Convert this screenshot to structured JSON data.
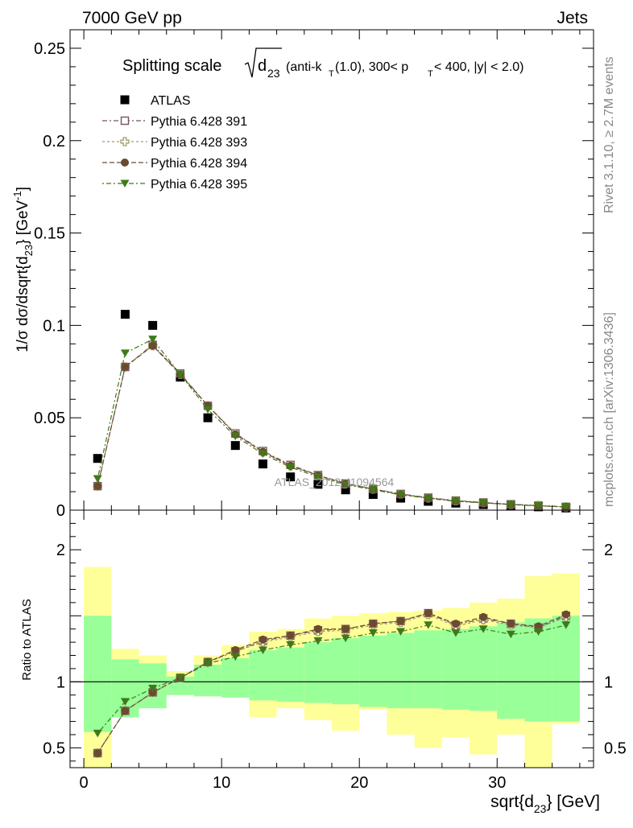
{
  "header": {
    "left": "7000 GeV pp",
    "right": "Jets"
  },
  "side": {
    "rivet": "Rivet 3.1.10, ≥ 2.7M events",
    "site": "mcplots.cern.ch [arXiv:1306.3436]"
  },
  "title": {
    "main": "Splitting scale",
    "radical_base": "d",
    "radical_sub": "23",
    "cuts_a": "(anti-k",
    "cuts_a_sub": "T",
    "cuts_b": "(1.0), 300< p",
    "cuts_b_sub": "T",
    "cuts_c": " < 400, |y| < 2.0)"
  },
  "watermark": "ATLAS_2012_I1094564",
  "axes": {
    "ylabel_main": "1/σ dσ/dsqrt{d",
    "ylabel_main_sub": "23",
    "ylabel_main_end": "} [GeV",
    "ylabel_main_sup": "-1",
    "ylabel_main_close": "]",
    "ylabel_ratio": "Ratio to ATLAS",
    "xlabel_a": "sqrt{d",
    "xlabel_sub": "23",
    "xlabel_b": "} [GeV]"
  },
  "colors": {
    "data": "#000000",
    "p391": "#755460",
    "p393": "#a59b6b",
    "p394": "#6b4a30",
    "p395": "#3f7a1a",
    "band_inner": "#99ff99",
    "band_outer": "#ffff99"
  },
  "chart_data": {
    "type": "scatter",
    "x": [
      1,
      3,
      5,
      7,
      9,
      11,
      13,
      15,
      17,
      19,
      21,
      23,
      25,
      27,
      29,
      31,
      33,
      35
    ],
    "bin_edges": [
      0,
      2,
      4,
      6,
      8,
      10,
      12,
      14,
      16,
      18,
      20,
      22,
      24,
      26,
      28,
      30,
      32,
      34,
      36
    ],
    "xlim": [
      -1,
      37
    ],
    "xticks": [
      0,
      10,
      20,
      30
    ],
    "top_panel": {
      "ylim": [
        0,
        0.26
      ],
      "yticks": [
        0,
        0.05,
        0.1,
        0.15,
        0.2,
        0.25
      ],
      "ytick_labels": [
        "0",
        "0.05",
        "0.1",
        "0.15",
        "0.2",
        "0.25"
      ],
      "legend_position": "top-left",
      "series": [
        {
          "name": "ATLAS",
          "marker": "square-filled",
          "values": [
            0.028,
            0.106,
            0.1,
            0.072,
            0.05,
            0.035,
            0.025,
            0.018,
            0.014,
            0.011,
            0.0085,
            0.0065,
            0.0048,
            0.0038,
            0.003,
            0.0022,
            0.0018,
            0.0012
          ]
        },
        {
          "name": "Pythia 6.428 391",
          "marker": "square-open",
          "values": [
            0.013,
            0.0775,
            0.0895,
            0.074,
            0.0565,
            0.0415,
            0.032,
            0.0245,
            0.019,
            0.0145,
            0.0115,
            0.0088,
            0.0068,
            0.0052,
            0.0042,
            0.0032,
            0.0025,
            0.0018
          ]
        },
        {
          "name": "Pythia 6.428 393",
          "marker": "cross-open",
          "values": [
            0.013,
            0.0775,
            0.089,
            0.0735,
            0.0565,
            0.0415,
            0.0315,
            0.024,
            0.0188,
            0.0143,
            0.0114,
            0.0087,
            0.0066,
            0.0051,
            0.0041,
            0.0031,
            0.0025,
            0.0018
          ]
        },
        {
          "name": "Pythia 6.428 394",
          "marker": "circle-filled",
          "values": [
            0.013,
            0.0775,
            0.089,
            0.0735,
            0.0565,
            0.041,
            0.0315,
            0.024,
            0.0188,
            0.0143,
            0.0114,
            0.0086,
            0.0066,
            0.005,
            0.004,
            0.0031,
            0.0024,
            0.0018
          ]
        },
        {
          "name": "Pythia 6.428 395",
          "marker": "triangle-down-filled",
          "values": [
            0.017,
            0.085,
            0.0925,
            0.0735,
            0.0545,
            0.04,
            0.0305,
            0.0232,
            0.018,
            0.0138,
            0.011,
            0.0083,
            0.0064,
            0.0048,
            0.0039,
            0.003,
            0.0023,
            0.0017
          ]
        }
      ]
    },
    "ratio_panel": {
      "ylim": [
        0.35,
        2.3
      ],
      "yticks": [
        0.5,
        1,
        1.5,
        2
      ],
      "ytick_labels": [
        "0.5",
        "1",
        "",
        "2"
      ],
      "reference_line": 1,
      "band_inner": {
        "low": [
          0.62,
          0.73,
          0.8,
          0.9,
          0.89,
          0.88,
          0.86,
          0.85,
          0.84,
          0.83,
          0.81,
          0.8,
          0.8,
          0.79,
          0.78,
          0.72,
          0.7,
          0.7
        ],
        "high": [
          1.5,
          1.17,
          1.14,
          1.04,
          1.13,
          1.18,
          1.24,
          1.26,
          1.3,
          1.33,
          1.35,
          1.37,
          1.39,
          1.4,
          1.42,
          1.45,
          1.48,
          1.5
        ]
      },
      "band_outer": {
        "low": [
          0.35,
          0.9,
          0.9,
          0.95,
          0.93,
          0.9,
          0.73,
          0.8,
          0.71,
          0.63,
          0.79,
          0.6,
          0.5,
          0.58,
          0.45,
          0.6,
          0.35,
          0.68
        ]
      },
      "band_outer_high": [
        1.87,
        1.25,
        1.2,
        1.08,
        1.2,
        1.28,
        1.38,
        1.4,
        1.48,
        1.5,
        1.52,
        1.53,
        1.54,
        1.56,
        1.6,
        1.63,
        1.8,
        1.82
      ],
      "series": [
        {
          "name": "Pythia 6.428 391",
          "values": [
            0.46,
            0.78,
            0.92,
            1.03,
            1.15,
            1.23,
            1.31,
            1.35,
            1.39,
            1.4,
            1.44,
            1.46,
            1.52,
            1.43,
            1.48,
            1.44,
            1.41,
            1.5
          ]
        },
        {
          "name": "Pythia 6.428 393",
          "values": [
            0.46,
            0.78,
            0.92,
            1.03,
            1.15,
            1.23,
            1.3,
            1.34,
            1.38,
            1.39,
            1.43,
            1.45,
            1.51,
            1.42,
            1.47,
            1.43,
            1.41,
            1.49
          ]
        },
        {
          "name": "Pythia 6.428 394",
          "values": [
            0.46,
            0.78,
            0.92,
            1.03,
            1.15,
            1.24,
            1.32,
            1.35,
            1.4,
            1.4,
            1.44,
            1.46,
            1.52,
            1.44,
            1.49,
            1.44,
            1.42,
            1.51
          ]
        },
        {
          "name": "Pythia 6.428 395",
          "values": [
            0.61,
            0.85,
            0.95,
            1.03,
            1.14,
            1.19,
            1.24,
            1.28,
            1.31,
            1.33,
            1.37,
            1.38,
            1.43,
            1.37,
            1.4,
            1.36,
            1.38,
            1.43
          ]
        }
      ]
    }
  }
}
